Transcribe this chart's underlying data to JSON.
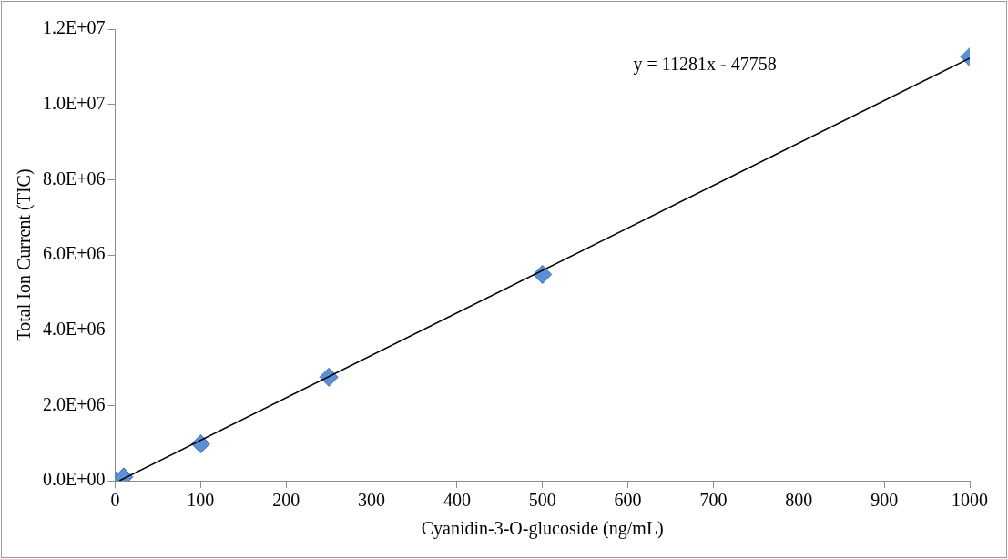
{
  "chart_data": {
    "type": "scatter",
    "xlabel": "Cyanidin-3-O-glucoside (ng/mL)",
    "ylabel": "Total Ion Current (TIC)",
    "x": [
      1,
      10,
      100,
      250,
      500,
      1000
    ],
    "series": [
      {
        "color": "#5b8fd6",
        "marker": "diamond",
        "values": [
          0,
          100000,
          980000,
          2750000,
          5480000,
          11260000
        ]
      },
      {
        "type": "line",
        "color": "#000000",
        "x": [
          5,
          1000
        ],
        "values": [
          0,
          11230000
        ],
        "marker": "none"
      }
    ],
    "xlim": [
      0,
      1000
    ],
    "xticks": [
      0,
      100,
      200,
      300,
      400,
      500,
      600,
      700,
      800,
      900,
      1000
    ],
    "ylim": [
      0,
      12000000
    ],
    "yticks": [
      {
        "value": 0,
        "label": "0.0E+00"
      },
      {
        "value": 2000000,
        "label": "2.0E+06"
      },
      {
        "value": 4000000,
        "label": "4.0E+06"
      },
      {
        "value": 6000000,
        "label": "6.0E+06"
      },
      {
        "value": 8000000,
        "label": "8.0E+06"
      },
      {
        "value": 10000000,
        "label": "1.0E+07"
      },
      {
        "value": 12000000,
        "label": "1.2E+07"
      }
    ],
    "annotations": [
      "y = 11281x - 47758"
    ],
    "grid": false,
    "legend": false
  }
}
